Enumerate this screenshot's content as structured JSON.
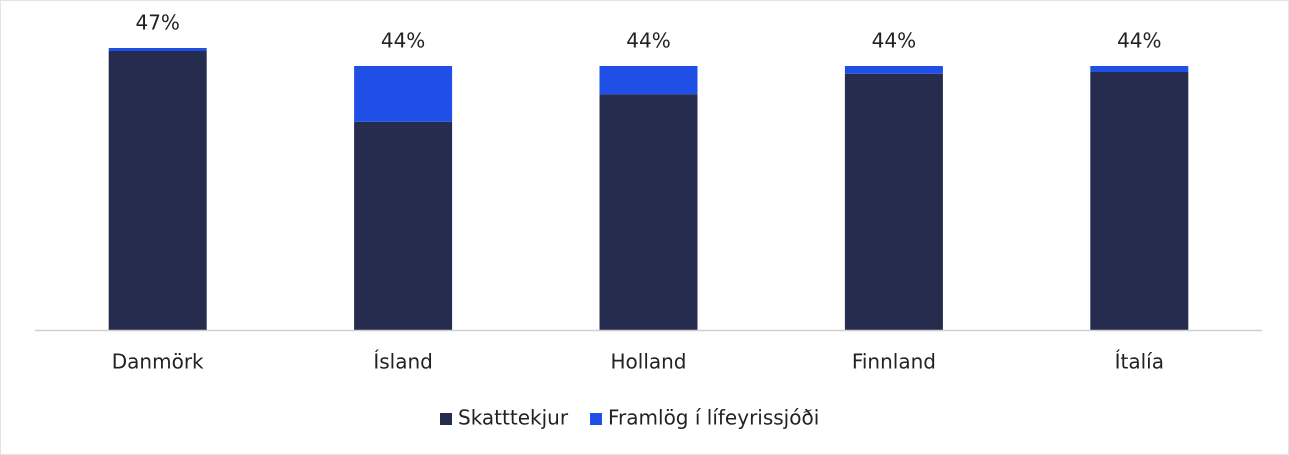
{
  "chart_data": {
    "type": "stacked_bar",
    "categories": [
      "Danmörk",
      "Ísland",
      "Holland",
      "Finnland",
      "Ítalía"
    ],
    "series": [
      {
        "name": "Skatttekjur",
        "color": "#262c4e",
        "values": [
          46.5,
          34.7,
          39.3,
          42.7,
          43
        ]
      },
      {
        "name": "Framlög í lífeyrissjóði",
        "color": "#1f4fe6",
        "values": [
          0.5,
          9.3,
          4.7,
          1.3,
          1
        ]
      }
    ],
    "totals": [
      47,
      44,
      44,
      44,
      44
    ],
    "total_labels": [
      "47%",
      "44%",
      "44%",
      "44%",
      "44%"
    ],
    "ylim": [
      0,
      50
    ],
    "grid": false,
    "legend": "bottom"
  }
}
